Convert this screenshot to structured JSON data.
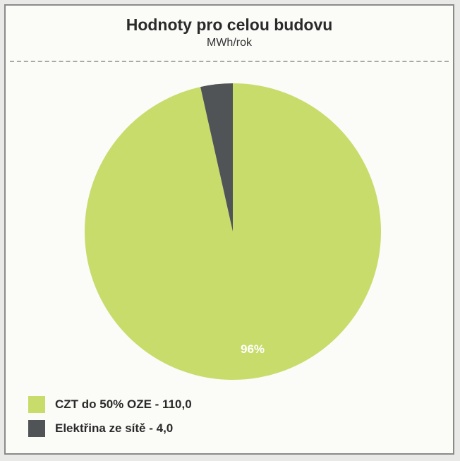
{
  "chart_data": {
    "type": "pie",
    "title": "Hodnoty pro celou budovu",
    "subtitle": "MWh/rok",
    "slices": [
      {
        "label": "CZT do 50% OZE - 110,0",
        "value": 110.0,
        "color": "#c8dc6c",
        "percent_label": "96%"
      },
      {
        "label": "Elektřina ze sítě - 4,0",
        "value": 4.0,
        "color": "#505456",
        "percent_label": ""
      }
    ],
    "legend_placement": "bottom-left"
  }
}
